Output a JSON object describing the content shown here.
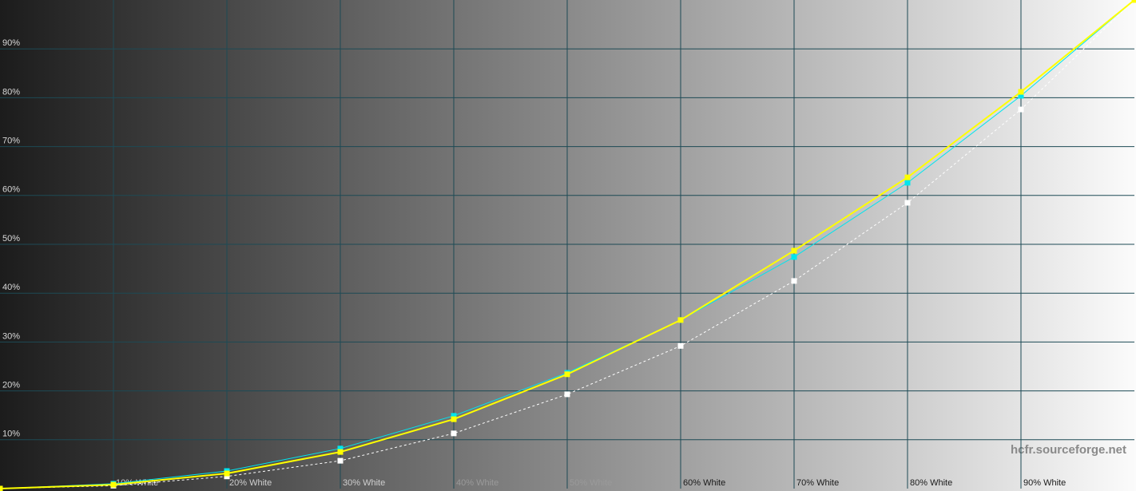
{
  "chart_data": {
    "type": "line",
    "categories": [
      null,
      "10% White",
      "20% White",
      "30% White",
      "40% White",
      "50% White",
      "60% White",
      "70% White",
      "80% White",
      "90% White",
      null
    ],
    "series": [
      {
        "color": "#ffffff",
        "dashed": true,
        "values": [
          0,
          0.6,
          2.5,
          5.7,
          11.3,
          19.3,
          29.2,
          42.5,
          58.5,
          77.6,
          100
        ]
      },
      {
        "color": "#00e5ee",
        "values": [
          0,
          1.0,
          3.6,
          8.2,
          14.9,
          23.7,
          34.5,
          47.4,
          62.6,
          80.4,
          100
        ]
      },
      {
        "color": "#ffff00",
        "values": [
          0,
          0.8,
          3.1,
          7.5,
          14.2,
          23.4,
          34.5,
          48.7,
          63.7,
          81.2,
          100
        ]
      }
    ],
    "ylim": [
      0,
      100
    ],
    "yticks": [
      {
        "value": 10,
        "label": "10%"
      },
      {
        "value": 20,
        "label": "20%"
      },
      {
        "value": 30,
        "label": "30%"
      },
      {
        "value": 40,
        "label": "40%"
      },
      {
        "value": 50,
        "label": "50%"
      },
      {
        "value": 60,
        "label": "60%"
      },
      {
        "value": 70,
        "label": "70%"
      },
      {
        "value": 80,
        "label": "80%"
      },
      {
        "value": 90,
        "label": "90%"
      }
    ],
    "grid": true,
    "grid_color": "#1d4a55",
    "watermark": "hcfr.sourceforge.net"
  }
}
